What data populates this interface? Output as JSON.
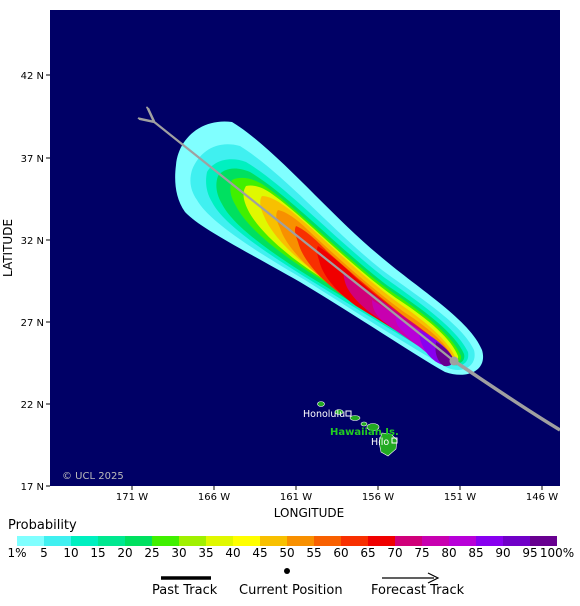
{
  "map": {
    "copyright": "© UCL 2025",
    "x_axis_label": "LONGITUDE",
    "y_axis_label": "LATITUDE",
    "lat_ticks": [
      "42 N",
      "37 N",
      "32 N",
      "27 N",
      "22 N",
      "17 N"
    ],
    "lon_ticks": [
      "171 W",
      "166 W",
      "161 W",
      "156 W",
      "151 W",
      "146 W"
    ],
    "places": {
      "region_label": "Hawaiian Is.",
      "city1": "Honolulu",
      "city2": "Hilo"
    },
    "colors": {
      "ocean": "#000066",
      "land": "#22aa22",
      "track": "#a0a0a0",
      "region_label": "#22cc22"
    }
  },
  "legend": {
    "title": "Probability",
    "scale_labels": [
      "1%",
      "5",
      "10",
      "15",
      "20",
      "25",
      "30",
      "35",
      "40",
      "45",
      "50",
      "55",
      "60",
      "65",
      "70",
      "75",
      "80",
      "85",
      "90",
      "95",
      "100%"
    ],
    "colors": [
      "#80ffff",
      "#40f0f0",
      "#00f0c0",
      "#00e890",
      "#00e060",
      "#40f000",
      "#a0f000",
      "#e0f800",
      "#ffff00",
      "#f8c000",
      "#f89000",
      "#f86000",
      "#f83000",
      "#f00000",
      "#d0007a",
      "#c800b0",
      "#b800d8",
      "#8800f0",
      "#7000c8",
      "#680090"
    ],
    "keys": {
      "past_track": "Past Track",
      "current_position": "Current Position",
      "forecast_track": "Forecast Track"
    }
  }
}
